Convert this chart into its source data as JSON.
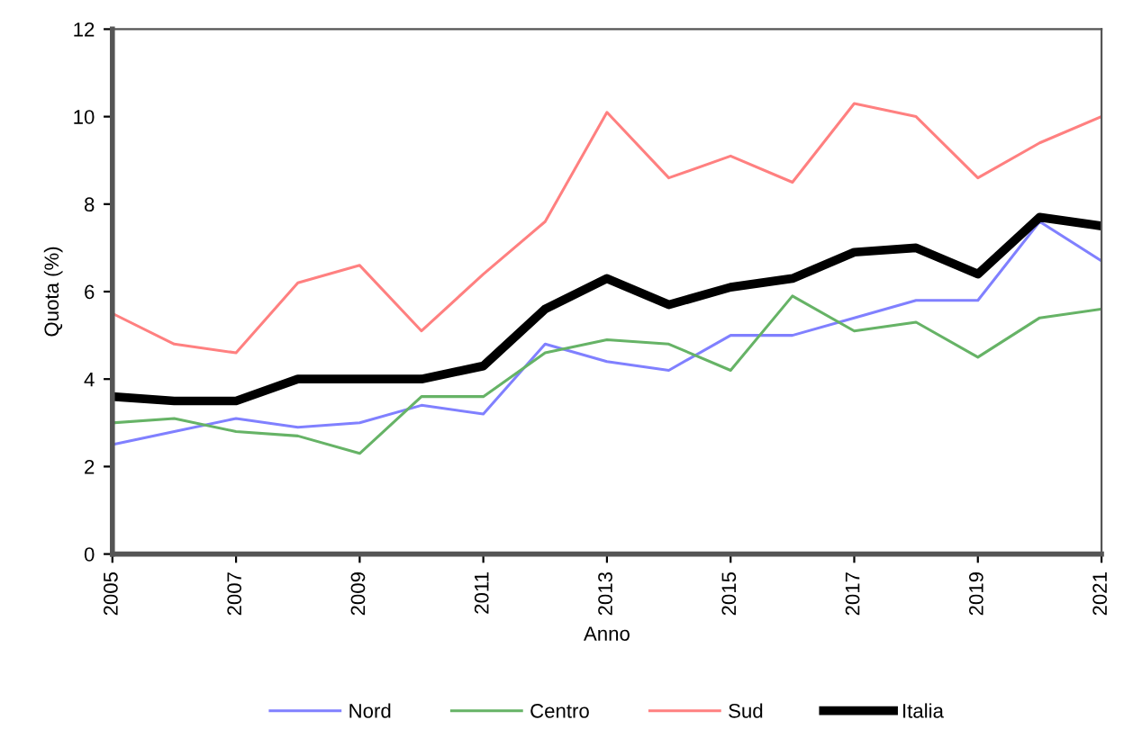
{
  "chart_data": {
    "type": "line",
    "xlabel": "Anno",
    "ylabel": "Quota (%)",
    "x": [
      2005,
      2006,
      2007,
      2008,
      2009,
      2010,
      2011,
      2012,
      2013,
      2014,
      2015,
      2016,
      2017,
      2018,
      2019,
      2020,
      2021
    ],
    "series": [
      {
        "name": "Nord",
        "color": "#8080ff",
        "values": [
          2.5,
          2.8,
          3.1,
          2.9,
          3.0,
          3.4,
          3.2,
          4.8,
          4.4,
          4.2,
          5.0,
          5.0,
          5.4,
          5.8,
          5.8,
          7.6,
          6.7
        ]
      },
      {
        "name": "Centro",
        "color": "#66b366",
        "values": [
          3.0,
          3.1,
          2.8,
          2.7,
          2.3,
          3.6,
          3.6,
          4.6,
          4.9,
          4.8,
          4.2,
          5.9,
          5.1,
          5.3,
          4.5,
          5.4,
          5.6
        ]
      },
      {
        "name": "Sud",
        "color": "#ff8080",
        "values": [
          5.5,
          4.8,
          4.6,
          6.2,
          6.6,
          5.1,
          6.4,
          7.6,
          10.1,
          8.6,
          9.1,
          8.5,
          10.3,
          10.0,
          8.6,
          9.4,
          10.0
        ]
      },
      {
        "name": "Italia",
        "color": "#000000",
        "values": [
          3.6,
          3.5,
          3.5,
          4.0,
          4.0,
          4.0,
          4.3,
          5.6,
          6.3,
          5.7,
          6.1,
          6.3,
          6.9,
          7.0,
          6.4,
          7.7,
          7.5
        ]
      }
    ],
    "xlim": [
      2005,
      2021
    ],
    "xticks": [
      2005,
      2007,
      2009,
      2011,
      2013,
      2015,
      2017,
      2019,
      2021
    ],
    "ylim": [
      0,
      12
    ],
    "yticks": [
      0,
      2,
      4,
      6,
      8,
      10,
      12
    ],
    "grid": false,
    "legend": "bottom",
    "marker": "none",
    "line_style": "solid"
  }
}
